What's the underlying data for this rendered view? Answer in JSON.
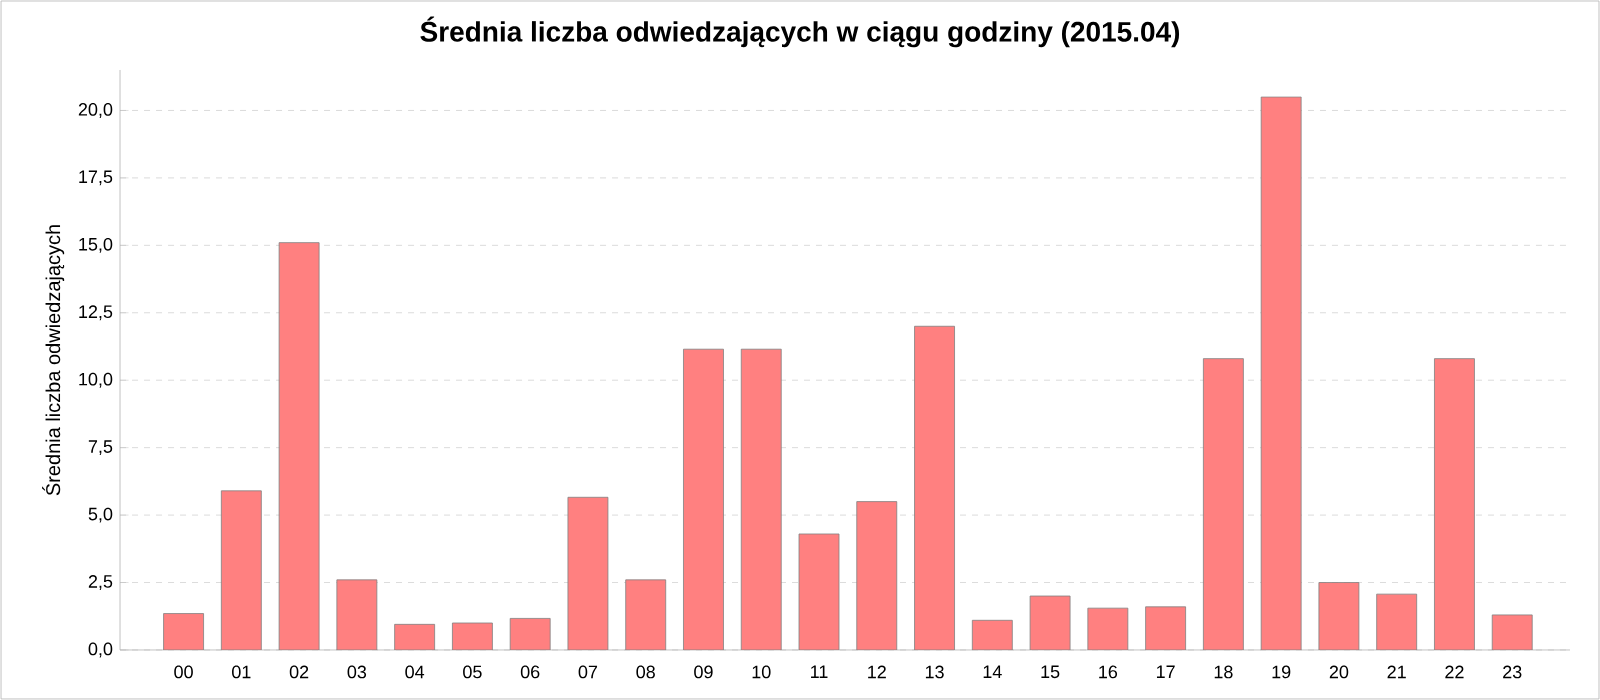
{
  "chart_data": {
    "type": "bar",
    "title": "Średnia liczba odwiedzających w ciągu godziny (2015.04)",
    "ylabel": "Średnia liczba odwiedzających",
    "categories": [
      "00",
      "01",
      "02",
      "03",
      "04",
      "05",
      "06",
      "07",
      "08",
      "09",
      "10",
      "11",
      "12",
      "13",
      "14",
      "15",
      "16",
      "17",
      "18",
      "19",
      "20",
      "21",
      "22",
      "23"
    ],
    "values": [
      1.35,
      5.9,
      15.1,
      2.6,
      0.95,
      1.0,
      1.17,
      5.66,
      2.6,
      11.15,
      11.15,
      4.3,
      5.5,
      12.0,
      1.1,
      2.0,
      1.55,
      1.6,
      10.8,
      20.5,
      2.5,
      2.07,
      10.8,
      1.3
    ],
    "color": "#ff8080",
    "ylim": [
      0,
      21.5
    ],
    "yticks": [
      {
        "value": 0,
        "label": "0,0"
      },
      {
        "value": 2.5,
        "label": "2,5"
      },
      {
        "value": 5,
        "label": "5,0"
      },
      {
        "value": 7.5,
        "label": "7,5"
      },
      {
        "value": 10,
        "label": "10,0"
      },
      {
        "value": 12.5,
        "label": "12,5"
      },
      {
        "value": 15,
        "label": "15,0"
      },
      {
        "value": 17.5,
        "label": "17,5"
      },
      {
        "value": 20,
        "label": "20,0"
      }
    ],
    "grid": "y"
  }
}
